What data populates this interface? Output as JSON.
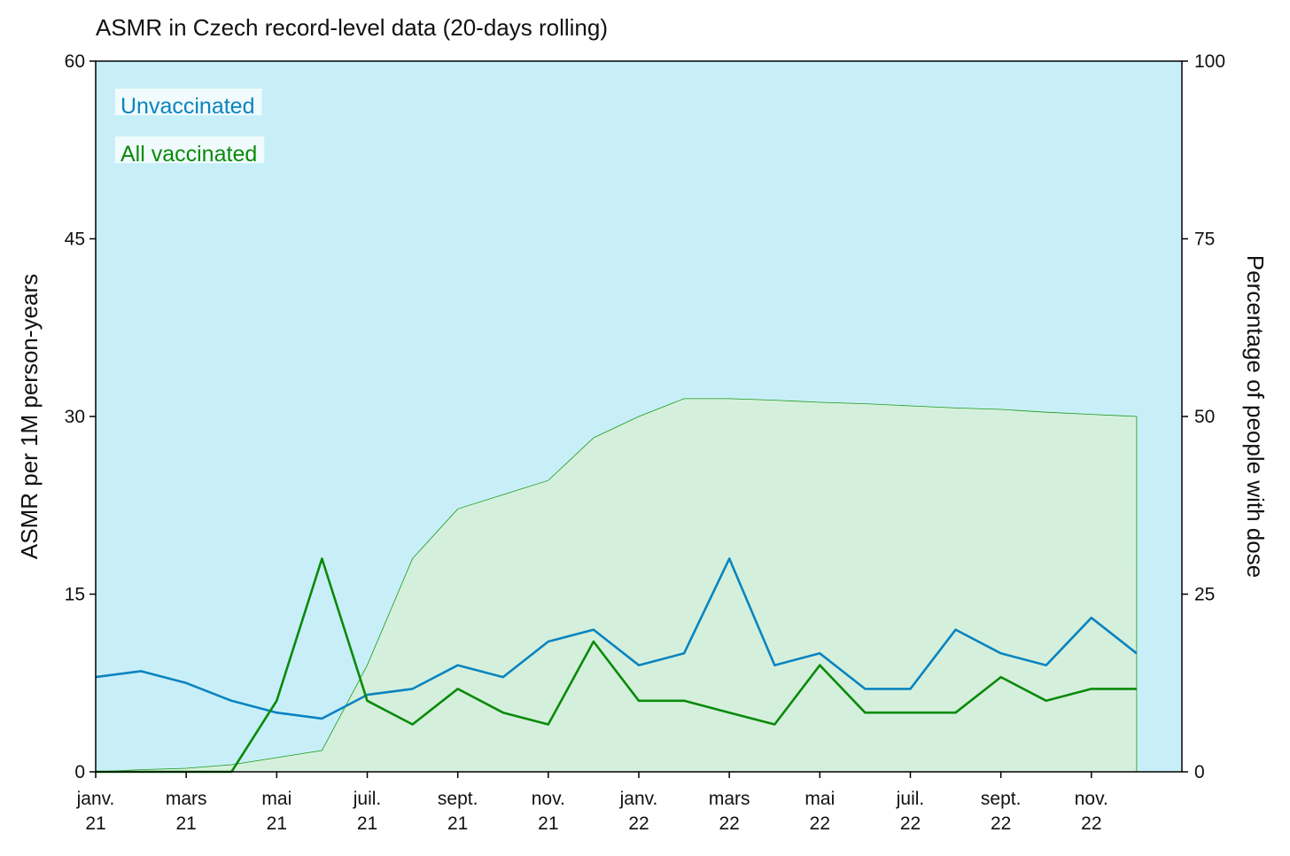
{
  "chart_data": {
    "type": "line",
    "title": "ASMR in Czech record-level data (20-days rolling)",
    "ylabel": "ASMR per 1M person-years",
    "y2label": "Percentage of people with dose",
    "background_color": "#c8eff8",
    "x": [
      "2021-01",
      "2021-02",
      "2021-03",
      "2021-04",
      "2021-05",
      "2021-06",
      "2021-07",
      "2021-08",
      "2021-09",
      "2021-10",
      "2021-11",
      "2021-12",
      "2022-01",
      "2022-02",
      "2022-03",
      "2022-04",
      "2022-05",
      "2022-06",
      "2022-07",
      "2022-08",
      "2022-09",
      "2022-10",
      "2022-11",
      "2022-12"
    ],
    "xlim": [
      "2021-01",
      "2023-01"
    ],
    "xticks": [
      {
        "value": "2021-01",
        "label": "janv. 21"
      },
      {
        "value": "2021-03",
        "label": "mars 21"
      },
      {
        "value": "2021-05",
        "label": "mai 21"
      },
      {
        "value": "2021-07",
        "label": "juil. 21"
      },
      {
        "value": "2021-09",
        "label": "sept. 21"
      },
      {
        "value": "2021-11",
        "label": "nov. 21"
      },
      {
        "value": "2022-01",
        "label": "janv. 22"
      },
      {
        "value": "2022-03",
        "label": "mars 22"
      },
      {
        "value": "2022-05",
        "label": "mai 22"
      },
      {
        "value": "2022-07",
        "label": "juil. 22"
      },
      {
        "value": "2022-09",
        "label": "sept. 22"
      },
      {
        "value": "2022-11",
        "label": "nov. 22"
      }
    ],
    "ylim": [
      0,
      60
    ],
    "yticks": [
      0,
      15,
      30,
      45,
      60
    ],
    "y2lim": [
      0,
      100
    ],
    "y2ticks": [
      0,
      25,
      50,
      75,
      100
    ],
    "series": [
      {
        "name": "Percentage of people with dose",
        "kind": "area",
        "axis": "y2",
        "color": "#d4f0dc",
        "values": [
          0,
          0.3,
          0.5,
          1,
          2,
          3,
          15,
          30,
          37,
          39,
          41,
          47,
          50,
          52.5,
          52.5,
          52.3,
          52,
          51.8,
          51.5,
          51.2,
          51,
          50.6,
          50.3,
          50
        ]
      },
      {
        "name": "Unvaccinated",
        "color": "#0a84c0",
        "values": [
          8,
          8.5,
          7.5,
          6,
          5,
          4.5,
          6.5,
          7,
          9,
          8,
          11,
          12,
          9,
          10,
          18,
          9,
          10,
          7,
          7,
          12,
          10,
          9,
          13,
          10
        ]
      },
      {
        "name": "All vaccinated",
        "color": "#0a8a0a",
        "values": [
          0,
          0,
          0,
          0,
          6,
          18,
          6,
          4,
          7,
          5,
          4,
          11,
          6,
          6,
          5,
          4,
          9,
          5,
          5,
          5,
          8,
          6,
          7,
          7
        ]
      }
    ]
  }
}
